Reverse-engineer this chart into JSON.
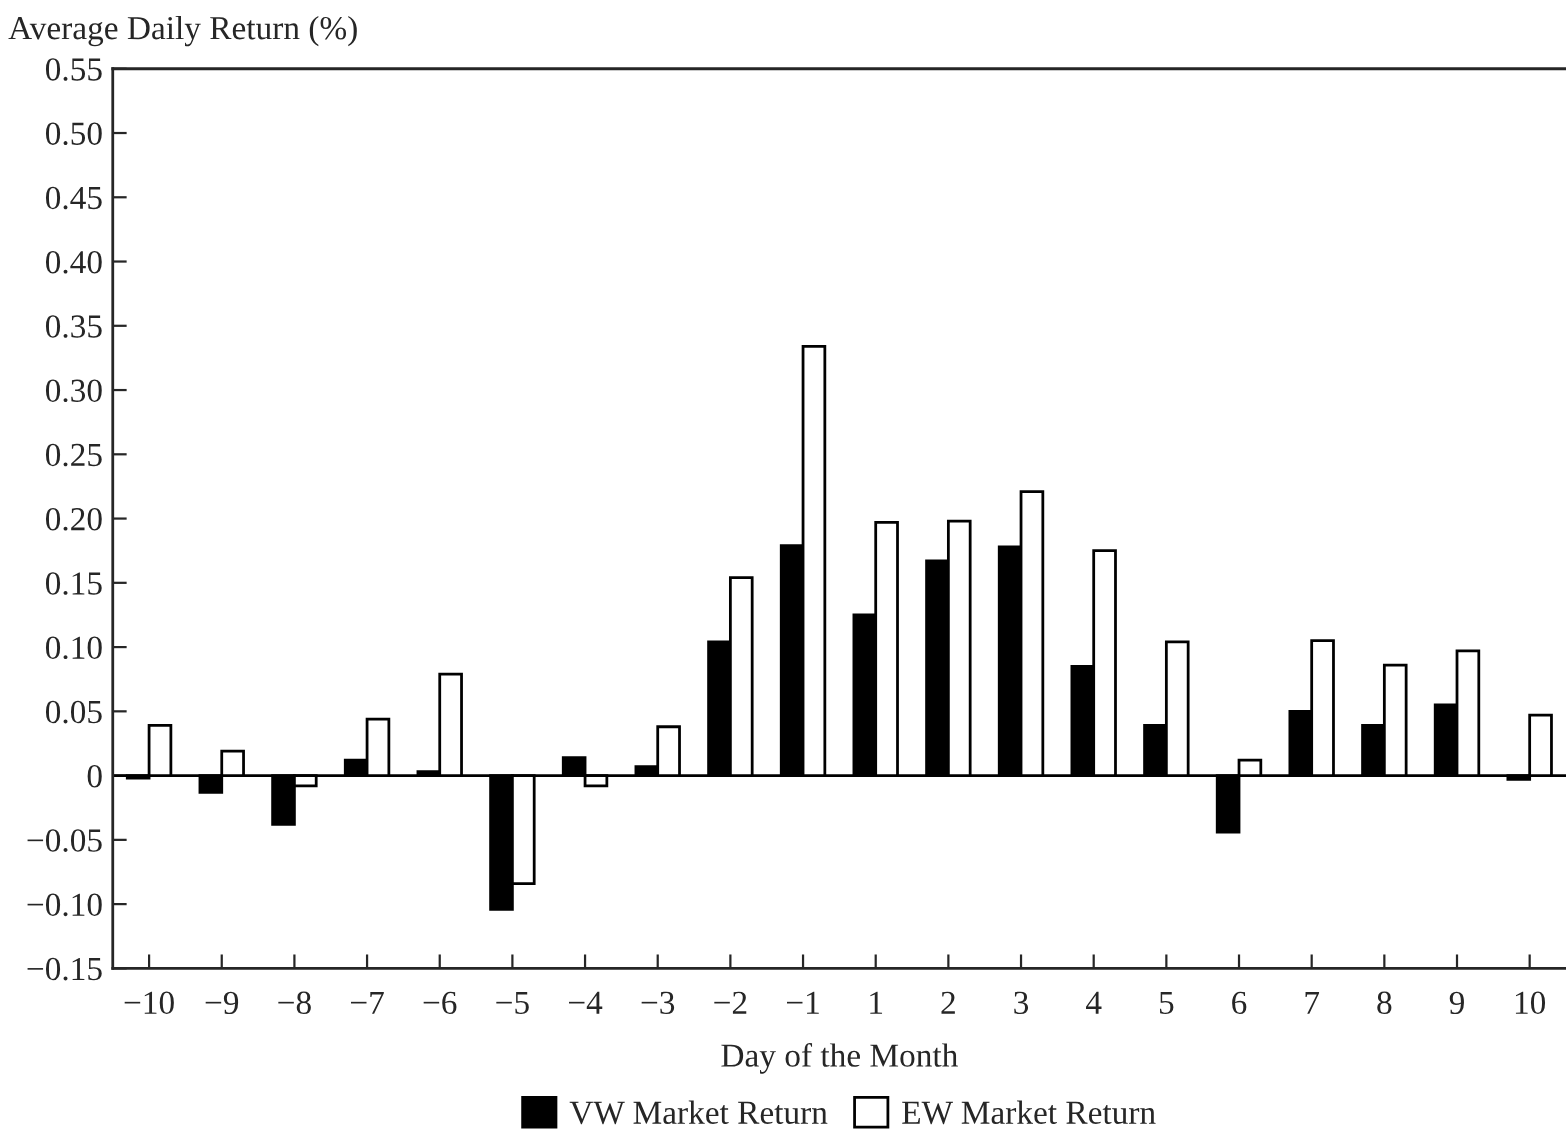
{
  "chart_data": {
    "type": "bar",
    "xlabel": "Day of the Month",
    "ylabel": "Average Daily Return (%)",
    "categories": [
      "−10",
      "−9",
      "−8",
      "−7",
      "−6",
      "−5",
      "−4",
      "−3",
      "−2",
      "−1",
      "1",
      "2",
      "3",
      "4",
      "5",
      "6",
      "7",
      "8",
      "9",
      "10"
    ],
    "series": [
      {
        "name": "VW Market Return",
        "color": "#000000",
        "values": [
          -0.002,
          -0.013,
          -0.038,
          0.012,
          0.003,
          -0.104,
          0.014,
          0.007,
          0.104,
          0.179,
          0.125,
          0.167,
          0.178,
          0.085,
          0.039,
          -0.044,
          0.05,
          0.039,
          0.055,
          -0.003
        ]
      },
      {
        "name": "EW Market Return",
        "color": "#ffffff",
        "values": [
          0.039,
          0.019,
          -0.008,
          0.044,
          0.079,
          -0.084,
          -0.008,
          0.038,
          0.154,
          0.334,
          0.197,
          0.198,
          0.221,
          0.175,
          0.104,
          0.012,
          0.105,
          0.086,
          0.097,
          0.047
        ]
      }
    ],
    "ylim": [
      -0.15,
      0.55
    ],
    "yticks": [
      {
        "value": -0.15,
        "label": "−0.15"
      },
      {
        "value": -0.1,
        "label": "−0.10"
      },
      {
        "value": -0.05,
        "label": "−0.05"
      },
      0,
      {
        "value": 0.05,
        "label": "0.05"
      },
      {
        "value": 0.1,
        "label": "0.10"
      },
      {
        "value": 0.15,
        "label": "0.15"
      },
      {
        "value": 0.2,
        "label": "0.20"
      },
      {
        "value": 0.25,
        "label": "0.25"
      },
      {
        "value": 0.3,
        "label": "0.30"
      },
      {
        "value": 0.35,
        "label": "0.35"
      },
      {
        "value": 0.4,
        "label": "0.40"
      },
      {
        "value": 0.45,
        "label": "0.45"
      },
      {
        "value": 0.5,
        "label": "0.50"
      },
      {
        "value": 0.55,
        "label": "0.55"
      }
    ],
    "legend": "bottom"
  }
}
